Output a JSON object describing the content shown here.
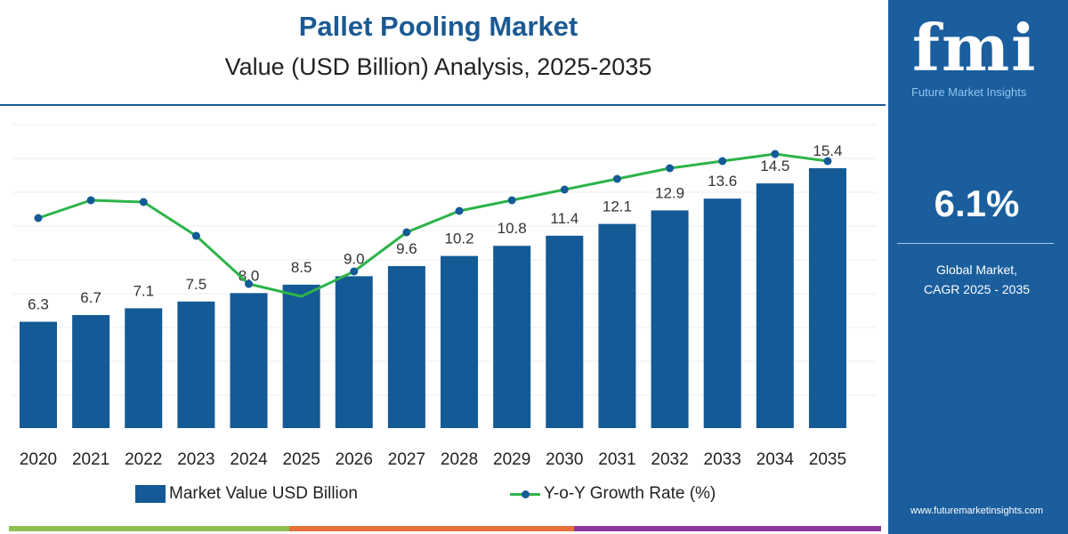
{
  "chart_data": {
    "type": "bar",
    "title": "Pallet Pooling Market",
    "subtitle": "Value (USD Billion) Analysis, 2025-2035",
    "categories": [
      "2020",
      "2021",
      "2022",
      "2023",
      "2024",
      "2025",
      "2026",
      "2027",
      "2028",
      "2029",
      "2030",
      "2031",
      "2032",
      "2033",
      "2034",
      "2035"
    ],
    "series": [
      {
        "name": "Market Value USD Billion",
        "type": "bar",
        "color": "#145a96",
        "values": [
          6.3,
          6.7,
          7.1,
          7.5,
          8.0,
          8.5,
          9.0,
          9.6,
          10.2,
          10.8,
          11.4,
          12.1,
          12.9,
          13.6,
          14.5,
          15.4
        ],
        "labels": [
          "6.3",
          "6.7",
          "7.1",
          "7.5",
          "8.0",
          "8.5",
          "9.0",
          "9.6",
          "10.2",
          "10.8",
          "11.4",
          "12.1",
          "12.9",
          "13.6",
          "14.5",
          "15.4"
        ]
      },
      {
        "name": "Y-o-Y Growth Rate (%)",
        "type": "line",
        "color": "#2db34a",
        "marker_color": "#145a96",
        "values": [
          6.2,
          6.7,
          6.65,
          5.7,
          4.35,
          4.0,
          4.7,
          5.8,
          6.4,
          6.7,
          7.0,
          7.3,
          7.6,
          7.8,
          8.0,
          7.8
        ]
      }
    ],
    "ylim": [
      0,
      18
    ],
    "grid": true,
    "legend": "bottom"
  },
  "brand": {
    "logo": "fmi",
    "name": "Future Market Insights",
    "website": "www.futuremarketinsights.com"
  },
  "highlight": {
    "value": "6.1%",
    "label_line1": "Global Market,",
    "label_line2": "CAGR 2025 - 2035"
  },
  "colors": {
    "bar": "#145a96",
    "line": "#2db34a",
    "panel": "#1a5e9e",
    "stripe": [
      "#8cc152",
      "#e8703a",
      "#8b3a9b"
    ]
  }
}
